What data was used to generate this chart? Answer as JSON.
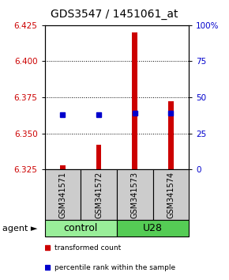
{
  "title": "GDS3547 / 1451061_at",
  "samples": [
    "GSM341571",
    "GSM341572",
    "GSM341573",
    "GSM341574"
  ],
  "bar_bottom": 6.325,
  "bar_tops": [
    6.328,
    6.342,
    6.42,
    6.372
  ],
  "blue_values": [
    6.363,
    6.363,
    6.364,
    6.364
  ],
  "ylim": [
    6.325,
    6.425
  ],
  "yticks_left": [
    6.325,
    6.35,
    6.375,
    6.4,
    6.425
  ],
  "yticks_right_labels": [
    "0",
    "25",
    "50",
    "75",
    "100%"
  ],
  "yticks_right_vals": [
    6.325,
    6.35,
    6.375,
    6.4,
    6.425
  ],
  "gridlines": [
    6.35,
    6.375,
    6.4
  ],
  "groups": [
    {
      "label": "control",
      "samples": [
        0,
        1
      ],
      "color": "#99ee99"
    },
    {
      "label": "U28",
      "samples": [
        2,
        3
      ],
      "color": "#55cc55"
    }
  ],
  "bar_color": "#cc0000",
  "blue_color": "#0000cc",
  "left_axis_color": "#cc0000",
  "right_axis_color": "#0000cc",
  "title_fontsize": 10,
  "tick_fontsize": 7.5,
  "sample_label_fontsize": 7,
  "group_label_fontsize": 9,
  "agent_label": "agent",
  "legend_red": "transformed count",
  "legend_blue": "percentile rank within the sample",
  "bar_width": 0.15
}
